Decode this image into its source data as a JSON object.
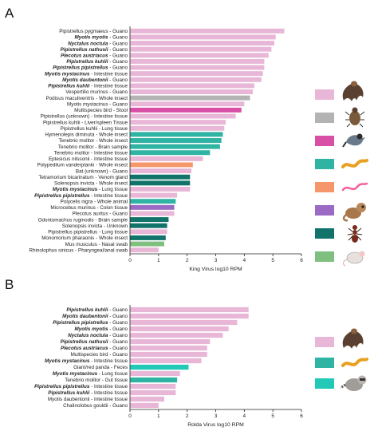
{
  "colors": {
    "light_pink": "#e8b6d6",
    "grey": "#b3b3b3",
    "magenta": "#d94fa6",
    "teal": "#2fb3a3",
    "orange": "#f5976b",
    "purple": "#9a6ac4",
    "dark_teal": "#12736a",
    "green": "#7fbf7f",
    "cyan": "#22c9b6"
  },
  "chart_data": [
    {
      "type": "bar",
      "panel": "A",
      "xlabel": "King Virus log10 RPM",
      "xlim": [
        0,
        6
      ],
      "x_ticks": [
        "0",
        "1",
        "2",
        "3",
        "4",
        "5",
        "6"
      ],
      "legend_colors": [
        "light_pink",
        "grey",
        "magenta",
        "teal",
        "orange",
        "purple",
        "dark_teal",
        "green"
      ],
      "legend_icons": [
        "bat-icon",
        "beetle-icon",
        "bird-icon",
        "worm-icon",
        "pink-worm-icon",
        "primate-icon",
        "ant-icon",
        "mouse-icon"
      ],
      "categories": [
        {
          "species": "Pipistrellus pygmaeus",
          "tissue": " - Guano",
          "bold": false
        },
        {
          "species": "Myotis myotis",
          "tissue": " - Guano",
          "bold": true
        },
        {
          "species": "Nyctalus noctula",
          "tissue": " - Guano",
          "bold": true
        },
        {
          "species": "Pipistrellus nathusii",
          "tissue": " - Guano",
          "bold": true
        },
        {
          "species": "Plecotus austriacus",
          "tissue": " - Guano",
          "bold": true
        },
        {
          "species": "Pipistrellus kuhlii",
          "tissue": " - Guano",
          "bold": true
        },
        {
          "species": "Pipistrellus pipistrellus",
          "tissue": " - Guano",
          "bold": true
        },
        {
          "species": "Myotis mystacinus",
          "tissue": " - Intestine tissue",
          "bold": true
        },
        {
          "species": "Myotis daubentonii",
          "tissue": " - Guano",
          "bold": true
        },
        {
          "species": "Pipistrellus kuhlii",
          "tissue": " - Intestine tissue",
          "bold": true
        },
        {
          "species": "Vespertilio murinus",
          "tissue": " - Guano",
          "bold": false
        },
        {
          "species": "Podisus maculiventris",
          "tissue": " - Whole insect",
          "bold": false
        },
        {
          "species": "Myotis mystacinus",
          "tissue": " - Guano",
          "bold": false
        },
        {
          "species": "Multispecies bird",
          "tissue": " - Stool",
          "bold": false
        },
        {
          "species": "Pipistrellus (unknown)",
          "tissue": " - Intestine tissue",
          "bold": false
        },
        {
          "species": "Pipistrellus kuhlii",
          "tissue": " - Liver/spleen Tissue",
          "bold": false
        },
        {
          "species": "Pipistrellus kuhlii",
          "tissue": " - Lung tissue",
          "bold": false
        },
        {
          "species": "Hymenolepis diminuta",
          "tissue": " - Whole insect",
          "bold": false
        },
        {
          "species": "Tenebrio molitor",
          "tissue": " - Whole insect",
          "bold": false
        },
        {
          "species": "Tenebrio molitor",
          "tissue": " - Brain sample",
          "bold": false
        },
        {
          "species": "Tenebrio molitor",
          "tissue": " - Intestine tissue",
          "bold": false
        },
        {
          "species": "Eptesicus nilssonii",
          "tissue": " - Intestine tissue",
          "bold": false
        },
        {
          "species": "Polypedilum vanderplanki",
          "tissue": " - Whole insect",
          "bold": false
        },
        {
          "species": "Bat  (unknown)",
          "tissue": " - Guano",
          "bold": false
        },
        {
          "species": "Tetramorium bicarinatum",
          "tissue": " - Venom gland",
          "bold": false
        },
        {
          "species": "Solenopsis invicta",
          "tissue": " - Whole insect",
          "bold": false
        },
        {
          "species": "Myotis mystacinus",
          "tissue": " - Lung tissue",
          "bold": true
        },
        {
          "species": "Pipistrellus pipistrellus",
          "tissue": " - Intestine tissue",
          "bold": true
        },
        {
          "species": "Polycelis nigra",
          "tissue": " - Whole animal",
          "bold": false
        },
        {
          "species": "Microcebus murinus",
          "tissue": " - Colon tissue",
          "bold": false
        },
        {
          "species": "Plecotus auritus",
          "tissue": " - Guano",
          "bold": false
        },
        {
          "species": "Odontomachus ruginodis",
          "tissue": " - Brain sample",
          "bold": false
        },
        {
          "species": "Solenopsis invicta",
          "tissue": " - Unknown",
          "bold": false
        },
        {
          "species": "Pipistrellus pipistrellus",
          "tissue": " - Lung tissue",
          "bold": false
        },
        {
          "species": "Monomorium pharaonis",
          "tissue": " - Whole insect",
          "bold": false
        },
        {
          "species": "Mus musculus",
          "tissue": " - Nasal swab",
          "bold": false
        },
        {
          "species": "Rhinolophus sinicus",
          "tissue": " - Pharyngeal/anal swab",
          "bold": false
        }
      ],
      "values": [
        5.4,
        5.1,
        5.05,
        4.95,
        4.85,
        4.7,
        4.7,
        4.65,
        4.6,
        4.35,
        4.3,
        4.2,
        4.0,
        3.9,
        3.7,
        3.35,
        3.3,
        3.25,
        3.2,
        3.15,
        2.8,
        2.55,
        2.2,
        2.15,
        2.1,
        2.1,
        2.1,
        1.65,
        1.6,
        1.55,
        1.55,
        1.35,
        1.3,
        1.3,
        1.25,
        1.2,
        1.0
      ],
      "colors": [
        "light_pink",
        "light_pink",
        "light_pink",
        "light_pink",
        "light_pink",
        "light_pink",
        "light_pink",
        "light_pink",
        "light_pink",
        "light_pink",
        "light_pink",
        "grey",
        "light_pink",
        "magenta",
        "light_pink",
        "light_pink",
        "light_pink",
        "teal",
        "teal",
        "teal",
        "teal",
        "light_pink",
        "orange",
        "light_pink",
        "dark_teal",
        "dark_teal",
        "light_pink",
        "light_pink",
        "teal",
        "purple",
        "light_pink",
        "dark_teal",
        "dark_teal",
        "light_pink",
        "dark_teal",
        "green",
        "light_pink"
      ]
    },
    {
      "type": "bar",
      "panel": "B",
      "xlabel": "Rolda Virus log10 RPM",
      "xlim": [
        0,
        6
      ],
      "x_ticks": [
        "0",
        "1",
        "2",
        "3",
        "4",
        "5",
        "6"
      ],
      "legend_colors": [
        "light_pink",
        "teal",
        "cyan"
      ],
      "legend_icons": [
        "bat-icon",
        "worm-icon",
        "raccoon-icon"
      ],
      "categories": [
        {
          "species": "Pipistrellus kuhlii",
          "tissue": " - Guano",
          "bold": true
        },
        {
          "species": "Myotis daubentonii",
          "tissue": " - Guano",
          "bold": true
        },
        {
          "species": "Pipistrellus pipistrellus",
          "tissue": " - Guano",
          "bold": true
        },
        {
          "species": "Myotis myotis",
          "tissue": " - Guano",
          "bold": true
        },
        {
          "species": "Nyctalus noctula",
          "tissue": " - Guano",
          "bold": true
        },
        {
          "species": "Pipistrellus nathusii",
          "tissue": " - Guano",
          "bold": true
        },
        {
          "species": "Plecotus austriacus",
          "tissue": " - Guano",
          "bold": true
        },
        {
          "species": "Multispecies bird",
          "tissue": " - Guano",
          "bold": false
        },
        {
          "species": "Myotis mystacinus",
          "tissue": " - Intestine tissue",
          "bold": true
        },
        {
          "species": "Giant/red panda",
          "tissue": " - Feces",
          "bold": false
        },
        {
          "species": "Myotis mystacinus",
          "tissue": " - Lung tissue",
          "bold": true
        },
        {
          "species": "Tenebrio molitor",
          "tissue": " - Gut tissue",
          "bold": false
        },
        {
          "species": "Pipistrellus pipistrellus",
          "tissue": " - Intestine tissue",
          "bold": true
        },
        {
          "species": "Pipistrellus kuhlii",
          "tissue": " - Intestine tissue",
          "bold": true
        },
        {
          "species": "Myotis daubentonii",
          "tissue": " - Intestine tissue",
          "bold": false
        },
        {
          "species": "Chalinolobus gouldii",
          "tissue": " - Guano",
          "bold": false
        }
      ],
      "values": [
        4.15,
        4.15,
        3.75,
        3.45,
        3.25,
        2.8,
        2.7,
        2.7,
        2.5,
        2.05,
        1.75,
        1.65,
        1.6,
        1.6,
        1.2,
        1.0
      ],
      "colors": [
        "light_pink",
        "light_pink",
        "light_pink",
        "light_pink",
        "light_pink",
        "light_pink",
        "light_pink",
        "light_pink",
        "light_pink",
        "cyan",
        "light_pink",
        "teal",
        "light_pink",
        "light_pink",
        "light_pink",
        "light_pink"
      ]
    }
  ],
  "panel_labels": [
    "A",
    "B"
  ]
}
